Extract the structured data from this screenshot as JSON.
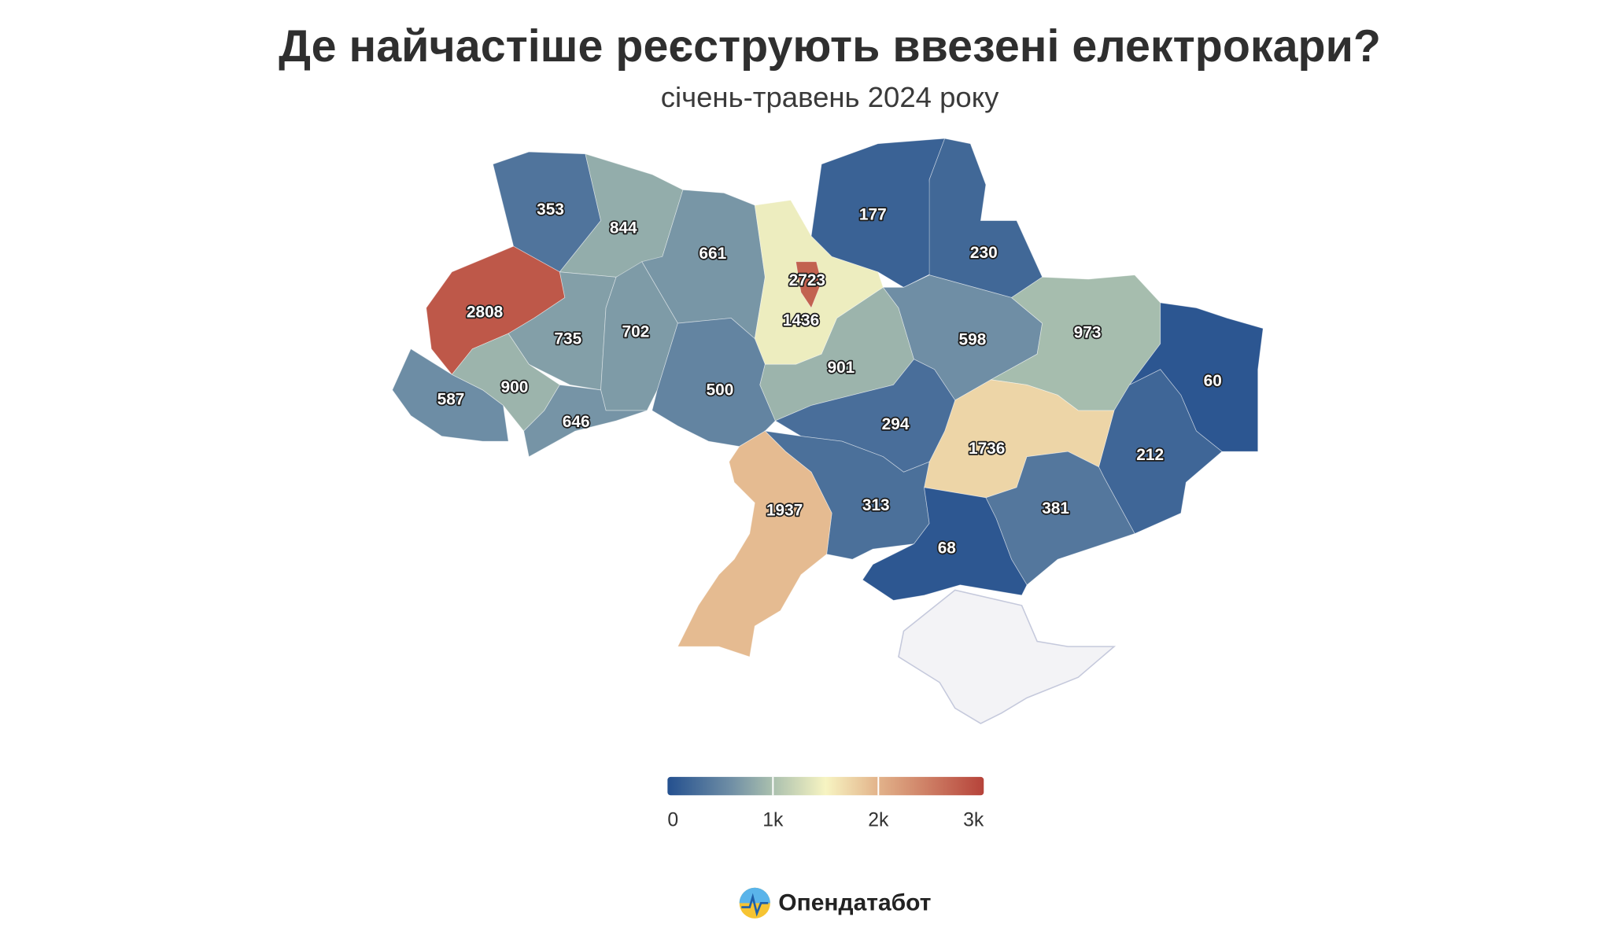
{
  "chart_data": {
    "type": "choropleth",
    "title": "Де найчастіше реєструють ввезені електрокари?",
    "subtitle": "січень-травень 2024 року",
    "values": [
      353,
      844,
      661,
      1436,
      2723,
      177,
      230,
      2808,
      735,
      702,
      587,
      900,
      646,
      500,
      901,
      598,
      973,
      60,
      212,
      1736,
      294,
      313,
      1937,
      381,
      68
    ],
    "colorscale": [
      [
        0,
        "#24508f"
      ],
      [
        0.2,
        "#6f8ea5"
      ],
      [
        0.33,
        "#a9bfae"
      ],
      [
        0.5,
        "#f7f4c2"
      ],
      [
        0.66,
        "#e3b58c"
      ],
      [
        1,
        "#b6433a"
      ]
    ],
    "clim": [
      0,
      3000
    ],
    "cticks": [
      0,
      {
        "value": 1000,
        "label": "1k"
      },
      {
        "value": 2000,
        "label": "2k"
      },
      {
        "value": 3000,
        "label": "3k"
      }
    ]
  },
  "footer": {
    "brand": "Опендатабот"
  }
}
